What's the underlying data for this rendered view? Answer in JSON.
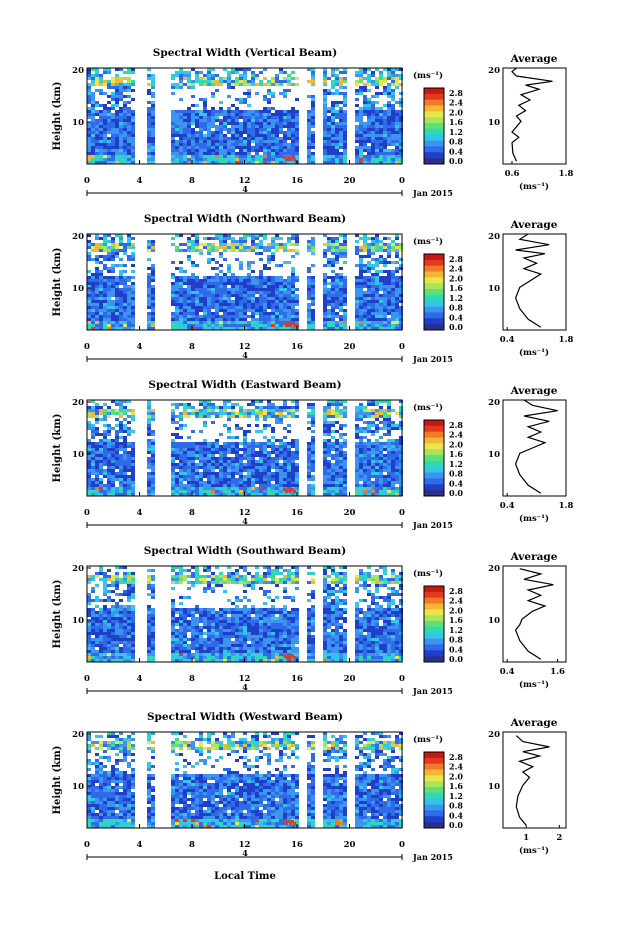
{
  "colors": {
    "scale": [
      "#2b2f8c",
      "#1f3fc8",
      "#2f6ae8",
      "#3b95f0",
      "#33c6e8",
      "#2fd9b8",
      "#5be07a",
      "#a9e55a",
      "#e9e64d",
      "#f5b636",
      "#f17a2a",
      "#e33a1f",
      "#c41a14"
    ],
    "background": "#ffffff"
  },
  "x_label": "Local Time",
  "date_label": "Jan 2015",
  "x_ticks": [
    "0",
    "4",
    "8",
    "12",
    "16",
    "20",
    "0"
  ],
  "y_label": "Height (km)",
  "y_ticks": [
    "20",
    "10"
  ],
  "colorbar": {
    "units": "(ms⁻¹)",
    "ticks": [
      "2.8",
      "2.4",
      "2.0",
      "1.6",
      "1.2",
      "0.8",
      "0.4",
      "0.0"
    ]
  },
  "average_title": "Average",
  "average_unit": "(ms⁻¹)",
  "date_tick": "4",
  "chart_data": [
    {
      "type": "heatmap",
      "title": "Spectral Width (Vertical Beam)",
      "xlabel": "",
      "ylabel": "Height (km)",
      "xlim": [
        0,
        24
      ],
      "ylim": [
        2,
        20
      ],
      "avg_ticks": [
        "0.6",
        "1.8"
      ],
      "avg_xlim": [
        0.4,
        1.8
      ],
      "avg_profile": [
        [
          0.7,
          2.5
        ],
        [
          0.62,
          4
        ],
        [
          0.6,
          6
        ],
        [
          0.75,
          7
        ],
        [
          0.6,
          8
        ],
        [
          0.7,
          9
        ],
        [
          0.8,
          10
        ],
        [
          0.7,
          11
        ],
        [
          0.9,
          12
        ],
        [
          0.75,
          13
        ],
        [
          1.0,
          14
        ],
        [
          0.8,
          15
        ],
        [
          1.2,
          16
        ],
        [
          0.9,
          16.8
        ],
        [
          1.5,
          17.5
        ],
        [
          0.7,
          18.5
        ],
        [
          0.6,
          19.3
        ],
        [
          0.7,
          20
        ]
      ]
    },
    {
      "type": "heatmap",
      "title": "Spectral Width (Northward Beam)",
      "xlabel": "",
      "ylabel": "Height (km)",
      "xlim": [
        0,
        24
      ],
      "ylim": [
        2,
        20
      ],
      "avg_ticks": [
        "0.4",
        "1.8"
      ],
      "avg_xlim": [
        0.3,
        1.8
      ],
      "avg_profile": [
        [
          1.2,
          2.5
        ],
        [
          0.9,
          4
        ],
        [
          0.7,
          6
        ],
        [
          0.6,
          8
        ],
        [
          0.7,
          10
        ],
        [
          0.9,
          11
        ],
        [
          1.2,
          12.5
        ],
        [
          0.8,
          13.5
        ],
        [
          1.1,
          14.5
        ],
        [
          0.8,
          15.5
        ],
        [
          1.3,
          16.3
        ],
        [
          0.6,
          17
        ],
        [
          1.4,
          18
        ],
        [
          0.7,
          19
        ],
        [
          0.9,
          20
        ]
      ]
    },
    {
      "type": "heatmap",
      "title": "Spectral Width (Eastward Beam)",
      "xlabel": "",
      "ylabel": "Height (km)",
      "xlim": [
        0,
        24
      ],
      "ylim": [
        2,
        20
      ],
      "avg_ticks": [
        "0.4",
        "1.8"
      ],
      "avg_xlim": [
        0.3,
        1.8
      ],
      "avg_profile": [
        [
          1.2,
          2.5
        ],
        [
          0.9,
          4
        ],
        [
          0.7,
          6
        ],
        [
          0.6,
          8
        ],
        [
          0.7,
          10
        ],
        [
          1.0,
          11
        ],
        [
          1.3,
          12
        ],
        [
          0.9,
          13
        ],
        [
          1.2,
          14
        ],
        [
          0.9,
          15
        ],
        [
          1.4,
          16
        ],
        [
          0.8,
          17
        ],
        [
          1.6,
          18
        ],
        [
          1.0,
          19
        ],
        [
          0.8,
          20
        ]
      ]
    },
    {
      "type": "heatmap",
      "title": "Spectral Width (Southward Beam)",
      "xlabel": "",
      "ylabel": "Height (km)",
      "xlim": [
        0,
        24
      ],
      "ylim": [
        2,
        20
      ],
      "avg_ticks": [
        "0.4",
        "1.6"
      ],
      "avg_xlim": [
        0.3,
        1.8
      ],
      "avg_profile": [
        [
          1.2,
          2.5
        ],
        [
          0.9,
          4
        ],
        [
          0.7,
          6
        ],
        [
          0.6,
          8
        ],
        [
          0.7,
          9
        ],
        [
          0.75,
          10
        ],
        [
          1.0,
          11.5
        ],
        [
          1.3,
          12.5
        ],
        [
          0.9,
          13.5
        ],
        [
          1.2,
          14.5
        ],
        [
          0.9,
          15.5
        ],
        [
          1.5,
          16.5
        ],
        [
          0.8,
          17.5
        ],
        [
          1.2,
          18.5
        ],
        [
          0.7,
          19.5
        ]
      ]
    },
    {
      "type": "heatmap",
      "title": "Spectral Width (Westward Beam)",
      "xlabel": "",
      "ylabel": "Height (km)",
      "xlim": [
        0,
        24
      ],
      "ylim": [
        2,
        20
      ],
      "avg_ticks": [
        "1",
        "2"
      ],
      "avg_xlim": [
        0.3,
        2.2
      ],
      "avg_profile": [
        [
          1.0,
          2.5
        ],
        [
          0.8,
          4
        ],
        [
          0.7,
          6
        ],
        [
          0.75,
          8
        ],
        [
          0.9,
          10
        ],
        [
          1.1,
          11.5
        ],
        [
          0.9,
          12.5
        ],
        [
          1.2,
          13.5
        ],
        [
          0.8,
          14.5
        ],
        [
          1.4,
          15.5
        ],
        [
          0.9,
          16.3
        ],
        [
          1.7,
          17.2
        ],
        [
          0.9,
          18.2
        ],
        [
          0.7,
          19.3
        ]
      ]
    }
  ]
}
